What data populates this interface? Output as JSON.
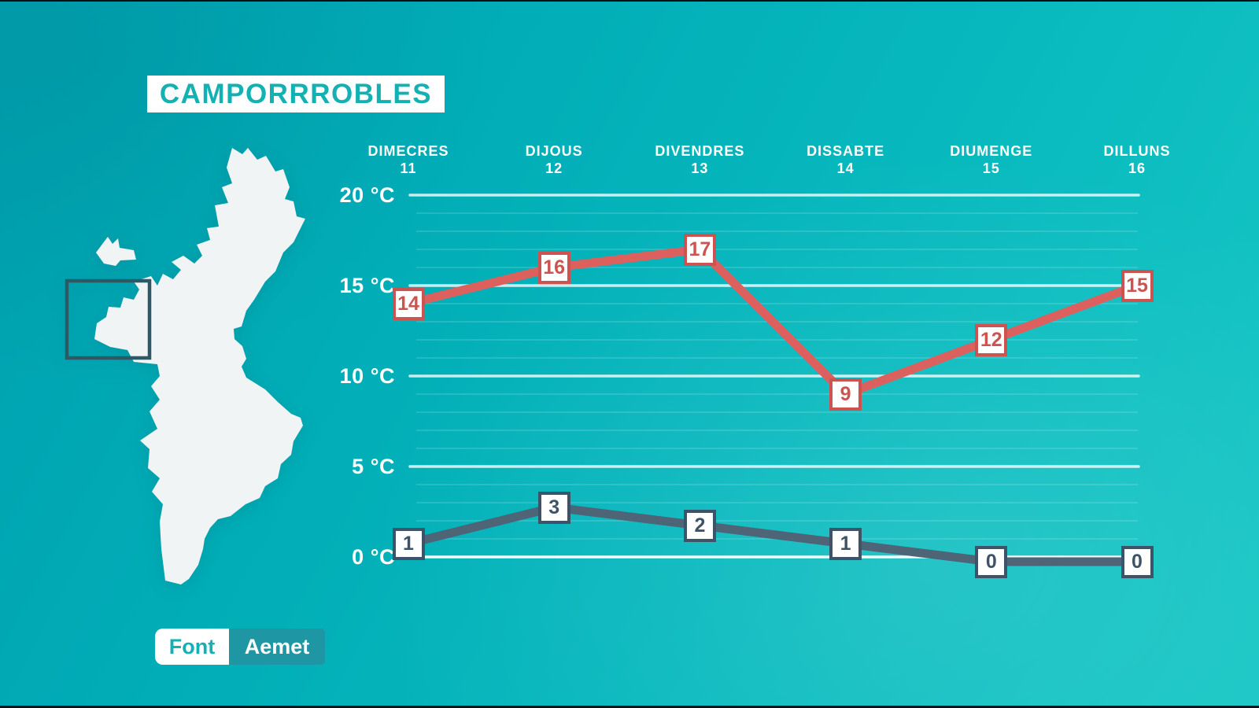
{
  "title": "CAMPORRROBLES",
  "source": {
    "label": "Font",
    "value": "Aemet"
  },
  "colors": {
    "background_start": "#00a0af",
    "background_end": "#18c7c5",
    "accent_teal": "#14b1b2",
    "max_line": "#dc605e",
    "max_label": "#cd5351",
    "min_line": "#4e6477",
    "min_label": "#3e5367",
    "grid": "#ffffff",
    "map_fill": "#f1f4f4",
    "map_highlight_stroke": "#2f5867",
    "source_value_bg": "#1f96a3"
  },
  "chart_data": {
    "type": "line",
    "title": "CAMPORRROBLES",
    "x_categories": [
      {
        "day": "DIMECRES",
        "date": "11"
      },
      {
        "day": "DIJOUS",
        "date": "12"
      },
      {
        "day": "DIVENDRES",
        "date": "13"
      },
      {
        "day": "DISSABTE",
        "date": "14"
      },
      {
        "day": "DIUMENGE",
        "date": "15"
      },
      {
        "day": "DILLUNS",
        "date": "16"
      }
    ],
    "y_ticks": [
      {
        "value": 20,
        "label": "20 °C"
      },
      {
        "value": 15,
        "label": "15 °C"
      },
      {
        "value": 10,
        "label": "10 °C"
      },
      {
        "value": 5,
        "label": "5 °C"
      },
      {
        "value": 0,
        "label": "0 °C"
      }
    ],
    "ylim": [
      0,
      20
    ],
    "unit": "°C",
    "grid": true,
    "major_grid_step": 5,
    "minor_grid_step": 1,
    "legend": "none",
    "series": [
      {
        "name": "max-temperature",
        "color": "#dc605e",
        "label_color": "#cd5351",
        "values": [
          14,
          16,
          17,
          9,
          12,
          15
        ]
      },
      {
        "name": "min-temperature",
        "color": "#4e6477",
        "label_color": "#3e5367",
        "values": [
          1,
          3,
          2,
          1,
          0,
          0
        ]
      }
    ]
  }
}
